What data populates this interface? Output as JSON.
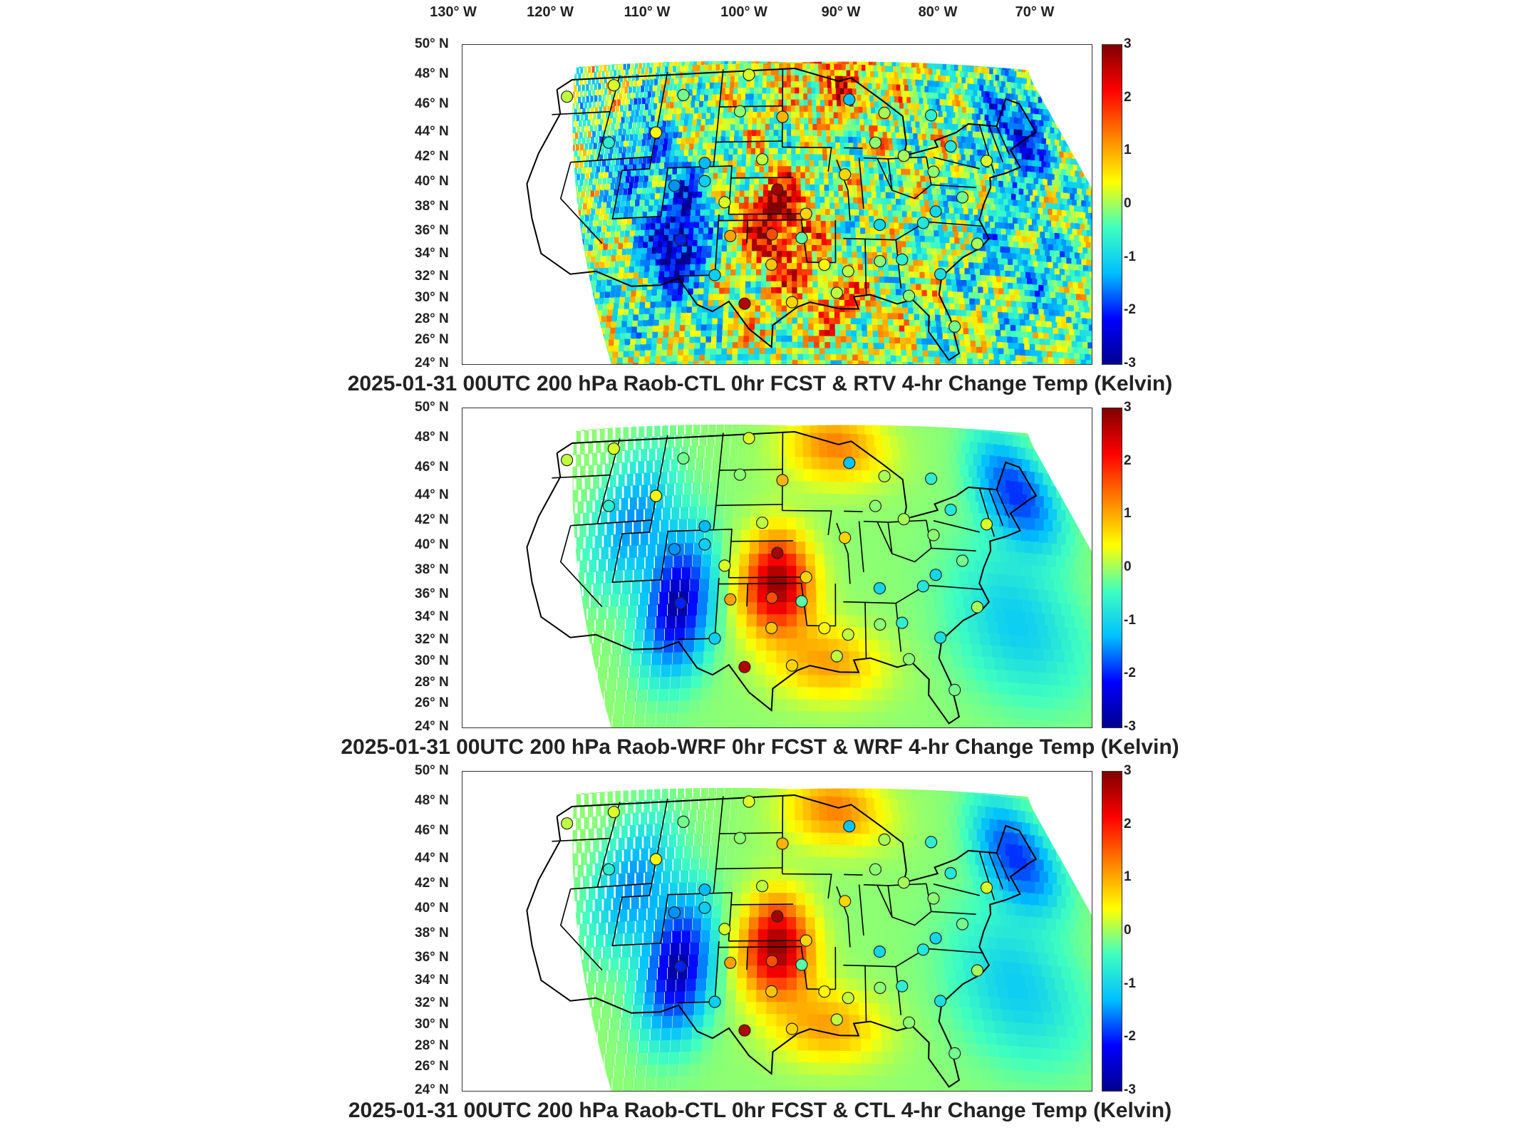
{
  "longitude_labels": [
    "130° W",
    "120° W",
    "110° W",
    "100° W",
    "90° W",
    "80° W",
    "70° W"
  ],
  "latitude_labels": [
    "50° N",
    "48° N",
    "46° N",
    "44° N",
    "42° N",
    "40° N",
    "38° N",
    "36° N",
    "34° N",
    "32° N",
    "30° N",
    "28° N",
    "26° N",
    "24° N"
  ],
  "colorbar": {
    "ticks": [
      "3",
      "2",
      "1",
      "0",
      "-1",
      "-2",
      "-3"
    ],
    "range": [
      -3,
      3
    ],
    "colormap": [
      "#00008f",
      "#0000ff",
      "#00c0ff",
      "#40ffbf",
      "#ffff00",
      "#ff8000",
      "#ff0000",
      "#800000"
    ]
  },
  "panels": [
    {
      "title": "2025-01-31 00UTC 200 hPa Raob-CTL 0hr FCST & RTV 4-hr Change Temp (Kelvin)",
      "style": "noisy"
    },
    {
      "title": "2025-01-31 00UTC 200 hPa Raob-WRF 0hr FCST & WRF 4-hr Change Temp (Kelvin)",
      "style": "smooth"
    },
    {
      "title": "2025-01-31 00UTC 200 hPa Raob-CTL 0hr FCST & CTL 4-hr Change Temp (Kelvin)",
      "style": "smooth"
    }
  ],
  "raob_stations": [
    {
      "lon": -122.9,
      "lat": 47.6,
      "v": 0.5
    },
    {
      "lon": -117.4,
      "lat": 48.2,
      "v": 0.6
    },
    {
      "lon": -108.5,
      "lat": 47.0,
      "v": 0.2
    },
    {
      "lon": -111.0,
      "lat": 44.0,
      "v": 0.8
    },
    {
      "lon": -116.2,
      "lat": 43.4,
      "v": -0.2
    },
    {
      "lon": -100.7,
      "lat": 48.5,
      "v": 0.6
    },
    {
      "lon": -101.5,
      "lat": 45.5,
      "v": 0.3
    },
    {
      "lon": -96.5,
      "lat": 45.0,
      "v": 1.2
    },
    {
      "lon": -88.5,
      "lat": 46.5,
      "v": -0.7
    },
    {
      "lon": -84.5,
      "lat": 45.5,
      "v": 0.4
    },
    {
      "lon": -86.0,
      "lat": 43.0,
      "v": 0.3
    },
    {
      "lon": -89.7,
      "lat": 40.3,
      "v": 1.0
    },
    {
      "lon": -83.0,
      "lat": 42.0,
      "v": 0.4
    },
    {
      "lon": -80.0,
      "lat": 40.8,
      "v": 0.3
    },
    {
      "lon": -77.5,
      "lat": 43.0,
      "v": -0.3
    },
    {
      "lon": -73.8,
      "lat": 42.0,
      "v": 0.6
    },
    {
      "lon": -77.4,
      "lat": 38.8,
      "v": 0.2
    },
    {
      "lon": -80.5,
      "lat": 37.5,
      "v": -0.5
    },
    {
      "lon": -105.0,
      "lat": 41.3,
      "v": -0.8
    },
    {
      "lon": -104.8,
      "lat": 39.8,
      "v": -0.6
    },
    {
      "lon": -108.0,
      "lat": 39.5,
      "v": -1.1
    },
    {
      "lon": -102.5,
      "lat": 38.0,
      "v": 0.6
    },
    {
      "lon": -97.0,
      "lat": 39.0,
      "v": 2.8
    },
    {
      "lon": -98.7,
      "lat": 41.5,
      "v": 0.5
    },
    {
      "lon": -94.0,
      "lat": 37.0,
      "v": 1.0
    },
    {
      "lon": -94.5,
      "lat": 35.0,
      "v": 0.1
    },
    {
      "lon": -97.5,
      "lat": 35.3,
      "v": 1.8
    },
    {
      "lon": -101.7,
      "lat": 35.2,
      "v": 1.3
    },
    {
      "lon": -106.7,
      "lat": 35.0,
      "v": -2.0
    },
    {
      "lon": -103.0,
      "lat": 32.0,
      "v": -0.6
    },
    {
      "lon": -100.0,
      "lat": 29.6,
      "v": 2.7
    },
    {
      "lon": -97.5,
      "lat": 32.8,
      "v": 1.1
    },
    {
      "lon": -95.5,
      "lat": 29.7,
      "v": 1.0
    },
    {
      "lon": -92.3,
      "lat": 32.8,
      "v": 0.8
    },
    {
      "lon": -90.0,
      "lat": 32.3,
      "v": 0.5
    },
    {
      "lon": -86.8,
      "lat": 33.2,
      "v": 0.3
    },
    {
      "lon": -84.6,
      "lat": 33.4,
      "v": -0.2
    },
    {
      "lon": -86.5,
      "lat": 36.2,
      "v": -0.5
    },
    {
      "lon": -82.0,
      "lat": 36.5,
      "v": -0.3
    },
    {
      "lon": -81.0,
      "lat": 32.3,
      "v": -0.4
    },
    {
      "lon": -80.3,
      "lat": 28.0,
      "v": 0.2
    },
    {
      "lon": -84.3,
      "lat": 30.4,
      "v": 0.3
    },
    {
      "lon": -91.2,
      "lat": 30.5,
      "v": 0.5
    },
    {
      "lon": -76.8,
      "lat": 35.0,
      "v": 0.4
    },
    {
      "lon": -79.0,
      "lat": 45.5,
      "v": -0.2
    }
  ]
}
